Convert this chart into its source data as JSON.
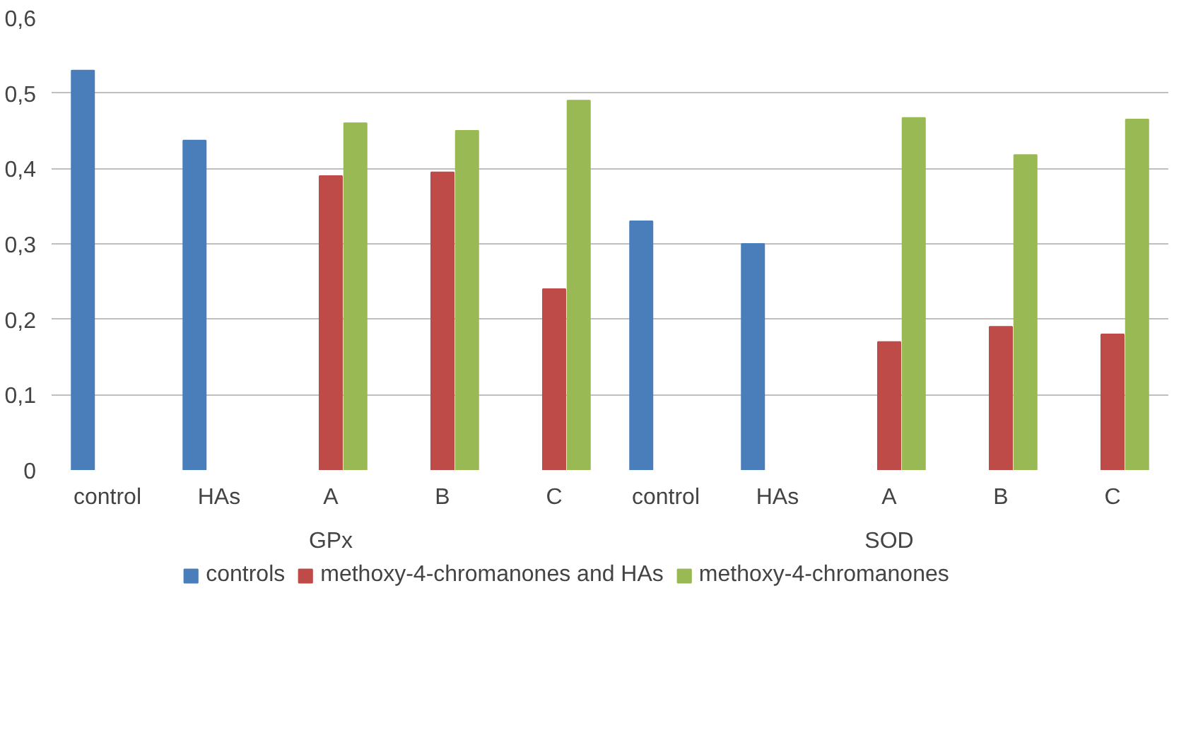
{
  "chart_data": {
    "type": "bar",
    "categories": [
      "control",
      "HAs",
      "A",
      "B",
      "C",
      "control",
      "HAs",
      "A",
      "B",
      "C"
    ],
    "series": [
      {
        "name": "controls",
        "color": "#4a7ebb",
        "values": [
          0.53,
          0.437,
          null,
          null,
          null,
          0.33,
          0.3,
          null,
          null,
          null
        ]
      },
      {
        "name": "methoxy-4-chromanones and HAs",
        "color": "#be4b48",
        "values": [
          null,
          null,
          0.39,
          0.395,
          0.24,
          null,
          null,
          0.17,
          0.19,
          0.18
        ]
      },
      {
        "name": "methoxy-4-chromanones",
        "color": "#98b954",
        "values": [
          null,
          null,
          0.46,
          0.45,
          0.49,
          null,
          null,
          0.467,
          0.418,
          0.465
        ]
      }
    ],
    "annotations": [
      "GPx",
      "SOD"
    ],
    "ylim": [
      0,
      0.6
    ],
    "yticks": [
      0,
      {
        "value": 0.1,
        "label": "0,1"
      },
      {
        "value": 0.2,
        "label": "0,2"
      },
      {
        "value": 0.3,
        "label": "0,3"
      },
      {
        "value": 0.4,
        "label": "0,4"
      },
      {
        "value": 0.5,
        "label": "0,5"
      },
      {
        "value": 0.6,
        "label": "0,6"
      }
    ],
    "grid": "y",
    "legend": "bottom"
  }
}
